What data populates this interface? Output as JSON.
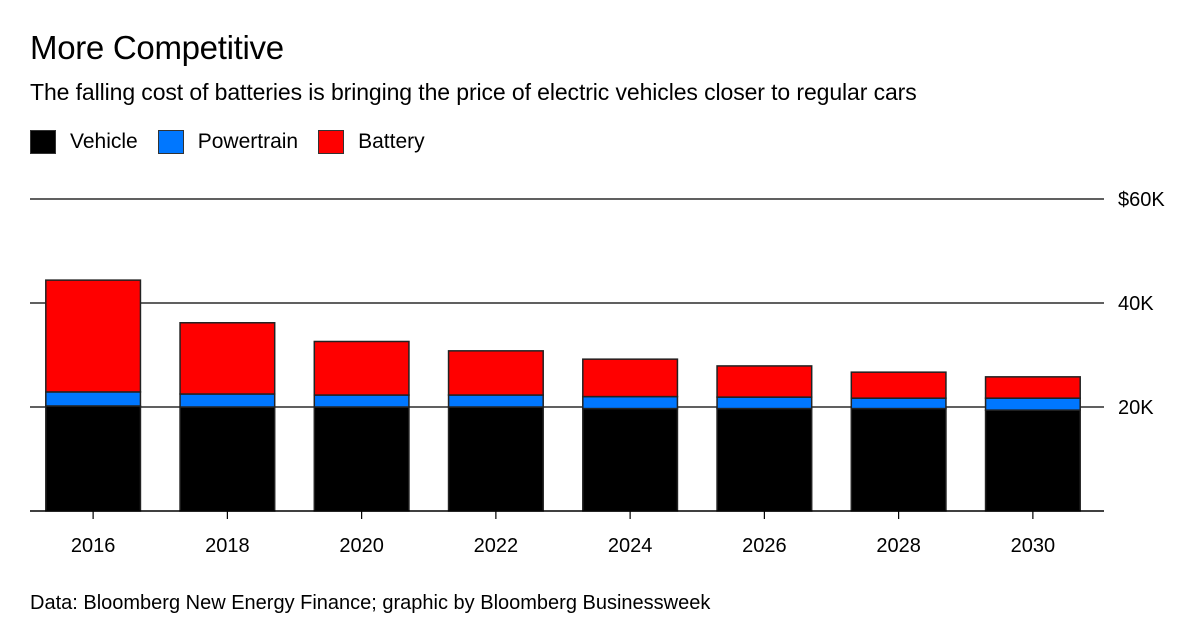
{
  "chart_data": {
    "type": "bar",
    "stacked": true,
    "title": "More Competitive",
    "subtitle": "The falling cost of batteries is bringing the price of electric vehicles closer to regular cars",
    "source": "Data: Bloomberg New Energy Finance; graphic by Bloomberg Businessweek",
    "xlabel": "",
    "ylabel": "",
    "categories": [
      "2016",
      "2018",
      "2020",
      "2022",
      "2024",
      "2026",
      "2028",
      "2030"
    ],
    "series": [
      {
        "name": "Vehicle",
        "color": "#000000",
        "values": [
          20.2,
          20.0,
          20.0,
          20.0,
          19.7,
          19.7,
          19.7,
          19.4
        ]
      },
      {
        "name": "Powertrain",
        "color": "#0077ff",
        "values": [
          2.7,
          2.5,
          2.3,
          2.3,
          2.3,
          2.2,
          2.0,
          2.3
        ]
      },
      {
        "name": "Battery",
        "color": "#ff0000",
        "values": [
          21.5,
          13.7,
          10.3,
          8.5,
          7.2,
          6.0,
          5.0,
          4.1
        ]
      }
    ],
    "units": "thousands of US dollars",
    "ylim": [
      0,
      60
    ],
    "yticks": [
      20,
      40,
      60
    ],
    "ytick_labels": [
      "20K",
      "40K",
      "$60K"
    ],
    "grid": true,
    "y_axis_side": "right",
    "legend_position": "top-left"
  }
}
